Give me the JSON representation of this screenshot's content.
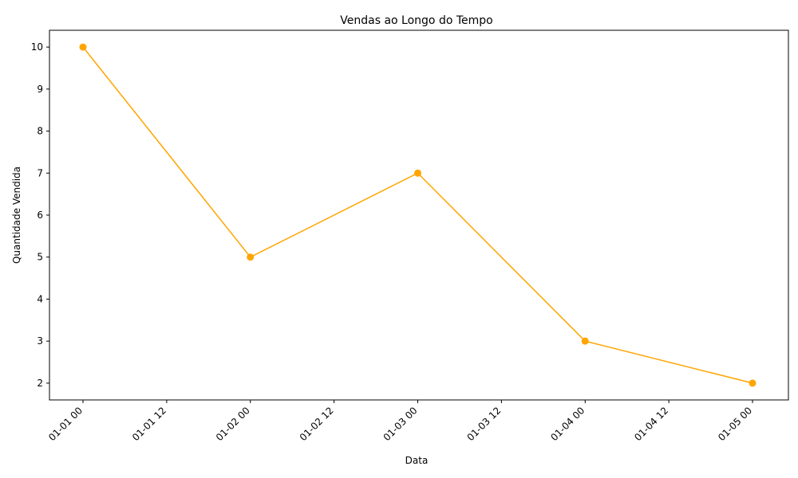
{
  "chart_data": {
    "type": "line",
    "title": "Vendas ao Longo do Tempo",
    "xlabel": "Data",
    "ylabel": "Quantidade Vendida",
    "x": [
      "01-01 00",
      "01-02 00",
      "01-03 00",
      "01-04 00",
      "01-05 00"
    ],
    "values": [
      10,
      5,
      7,
      3,
      2
    ],
    "x_ticks": [
      "01-01 00",
      "01-01 12",
      "01-02 00",
      "01-02 12",
      "01-03 00",
      "01-03 12",
      "01-04 00",
      "01-04 12",
      "01-05 00"
    ],
    "y_ticks": [
      2,
      3,
      4,
      5,
      6,
      7,
      8,
      9,
      10
    ],
    "ylim": [
      1.6,
      10.4
    ],
    "grid": false,
    "line_color": "#ffa500",
    "marker": "circle"
  }
}
